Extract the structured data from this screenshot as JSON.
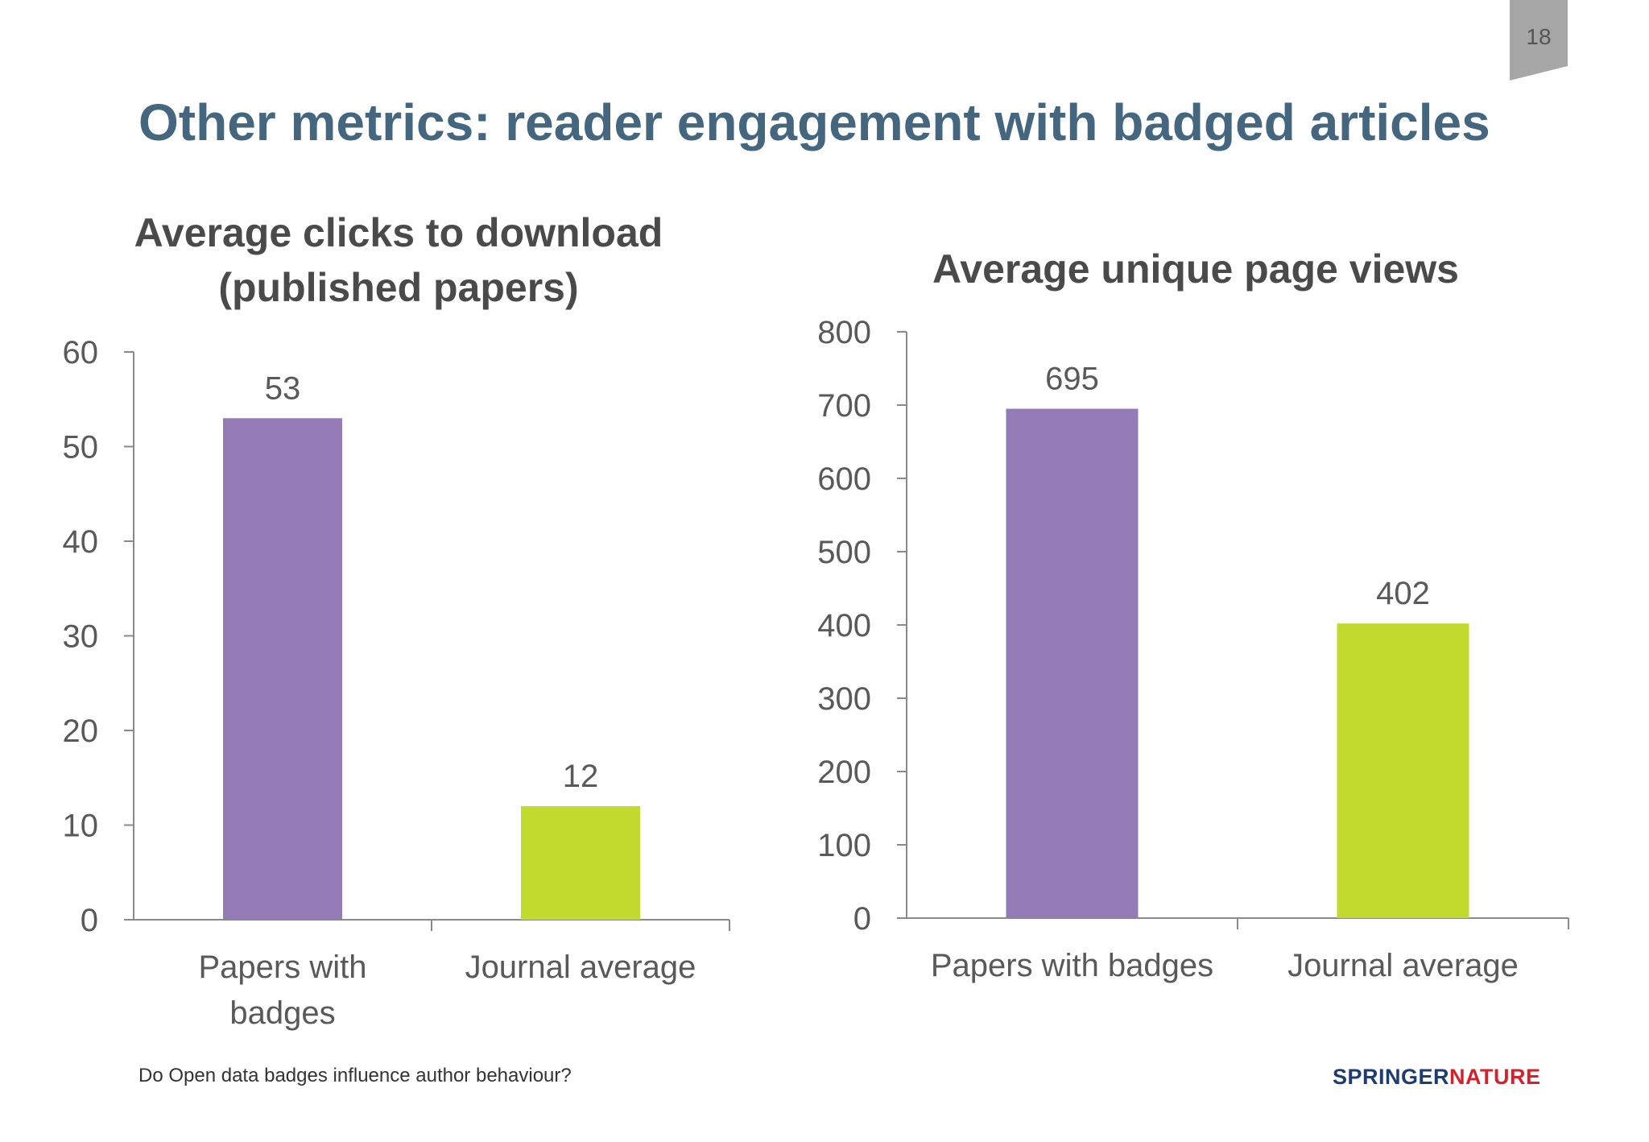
{
  "slide": {
    "title": "Other metrics: reader engagement with badged articles",
    "page_number": "18",
    "footer": "Do Open data badges influence author behaviour?",
    "logo": {
      "part1": "SPRINGER",
      "part2": "NATURE"
    }
  },
  "colors": {
    "title": "#44677f",
    "bar_badges": "#937cb6",
    "bar_journal": "#c2d92e",
    "axis": "#8a8a8a",
    "text": "#595959"
  },
  "chart_data": [
    {
      "type": "bar",
      "title": "Average clicks to download\n(published papers)",
      "categories": [
        "Papers with\nbadges",
        "Journal average"
      ],
      "values": [
        53,
        12
      ],
      "bar_colors": [
        "#937cb6",
        "#c2d92e"
      ],
      "data_labels": [
        "53",
        "12"
      ],
      "ylim": [
        0,
        60
      ],
      "yticks": [
        0,
        10,
        20,
        30,
        40,
        50,
        60
      ],
      "xlabel": "",
      "ylabel": "",
      "grid": false,
      "legend": "none"
    },
    {
      "type": "bar",
      "title": "Average unique page views",
      "categories": [
        "Papers with badges",
        "Journal average"
      ],
      "values": [
        695,
        402
      ],
      "bar_colors": [
        "#937cb6",
        "#c2d92e"
      ],
      "data_labels": [
        "695",
        "402"
      ],
      "ylim": [
        0,
        800
      ],
      "yticks": [
        0,
        100,
        200,
        300,
        400,
        500,
        600,
        700,
        800
      ],
      "xlabel": "",
      "ylabel": "",
      "grid": false,
      "legend": "none"
    }
  ]
}
